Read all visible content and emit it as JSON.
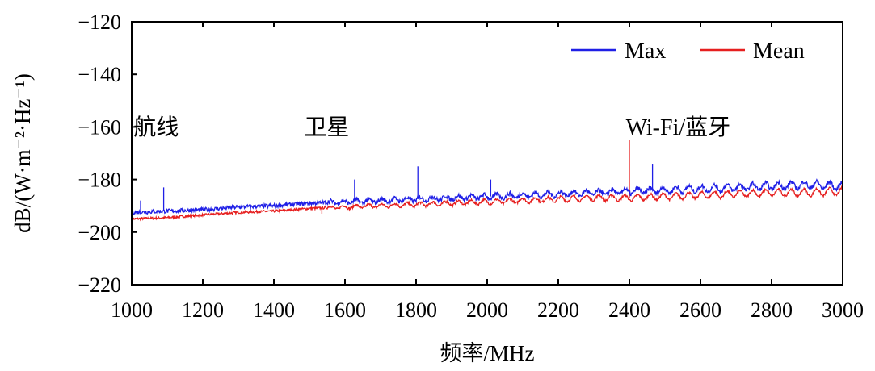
{
  "chart_data": {
    "type": "line",
    "title": "",
    "xlabel": "频率/MHz",
    "ylabel": "dB/(W·m⁻²·Hz⁻¹)",
    "xlim": [
      1000,
      3000
    ],
    "ylim": [
      -220,
      -120
    ],
    "x_ticks": [
      "1000",
      "1200",
      "1400",
      "1600",
      "1800",
      "2000",
      "2200",
      "2400",
      "2600",
      "2800",
      "3000"
    ],
    "y_ticks": [
      "−120",
      "−140",
      "−160",
      "−180",
      "−200",
      "−220"
    ],
    "legend_position": "top-right",
    "grid": false,
    "colors": {
      "Max": "#1f1fe6",
      "Mean": "#e61f1f"
    },
    "series": [
      {
        "name": "Max",
        "x": [
          1000,
          1100,
          1200,
          1300,
          1400,
          1500,
          1600,
          1700,
          1800,
          1900,
          2000,
          2100,
          2200,
          2300,
          2400,
          2500,
          2600,
          2700,
          2800,
          2900,
          3000
        ],
        "values": [
          -192.5,
          -192,
          -191.5,
          -190.5,
          -190,
          -189,
          -188.5,
          -188,
          -187.5,
          -187,
          -186.5,
          -186,
          -185.5,
          -185,
          -184.5,
          -184,
          -183.5,
          -183,
          -182.5,
          -182,
          -182.5
        ],
        "peaks": [
          {
            "x": 1025,
            "y": -188
          },
          {
            "x": 1090,
            "y": -183
          },
          {
            "x": 1627,
            "y": -180
          },
          {
            "x": 1805,
            "y": -175
          },
          {
            "x": 2010,
            "y": -180
          },
          {
            "x": 2465,
            "y": -174
          }
        ]
      },
      {
        "name": "Mean",
        "x": [
          1000,
          1100,
          1200,
          1300,
          1400,
          1500,
          1600,
          1700,
          1800,
          1900,
          2000,
          2100,
          2200,
          2300,
          2400,
          2500,
          2600,
          2700,
          2800,
          2900,
          3000
        ],
        "values": [
          -195,
          -194.5,
          -193.5,
          -192.5,
          -192,
          -191,
          -190.5,
          -190,
          -189.5,
          -189,
          -188.5,
          -188,
          -187.5,
          -187,
          -187,
          -186.5,
          -186,
          -185.5,
          -185,
          -185,
          -184.5
        ],
        "peaks": [
          {
            "x": 1535,
            "y": -193
          },
          {
            "x": 2400,
            "y": -165
          }
        ]
      }
    ],
    "annotations": [
      {
        "text": "航线",
        "x": 1005,
        "y": -163
      },
      {
        "text": "卫星",
        "x": 1485,
        "y": -163
      },
      {
        "text": "Wi-Fi/蓝牙",
        "x": 2390,
        "y": -163
      }
    ]
  }
}
